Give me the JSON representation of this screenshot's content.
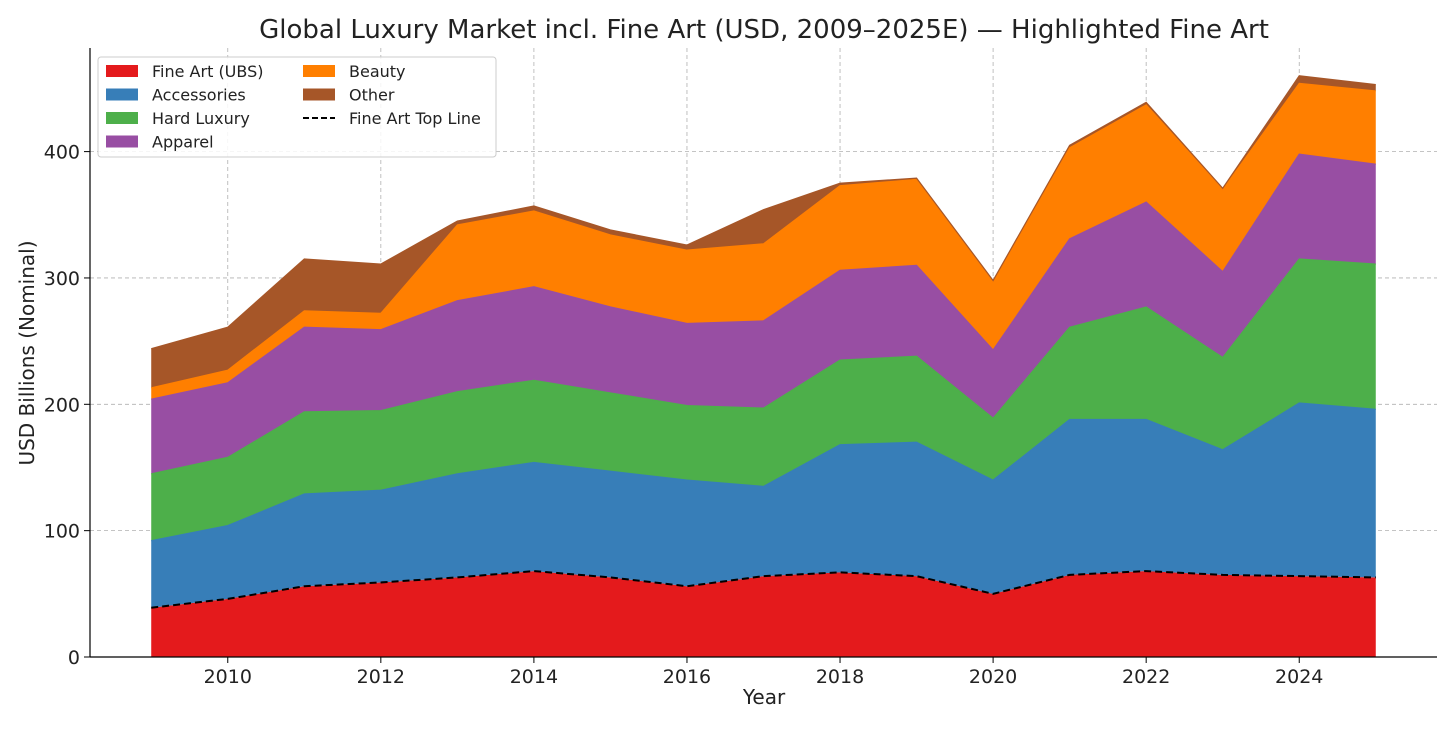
{
  "chart_data": {
    "type": "area",
    "stacked": true,
    "title": "Global Luxury Market incl. Fine Art (USD, 2009–2025E) — Highlighted Fine Art",
    "xlabel": "Year",
    "ylabel": "USD Billions (Nominal)",
    "xlim": [
      2008.2,
      2025.8
    ],
    "ylim": [
      0,
      482
    ],
    "xticks": [
      2010,
      2012,
      2014,
      2016,
      2018,
      2020,
      2022,
      2024
    ],
    "yticks": [
      0,
      100,
      200,
      300,
      400
    ],
    "grid": true,
    "legend_position": "top-left",
    "x": [
      2009,
      2010,
      2011,
      2012,
      2013,
      2014,
      2015,
      2016,
      2017,
      2018,
      2019,
      2020,
      2021,
      2022,
      2023,
      2024,
      2025
    ],
    "series": [
      {
        "name": "Fine Art (UBS)",
        "color": "#e41a1c",
        "values": [
          39,
          46,
          56,
          59,
          63,
          68,
          63,
          56,
          64,
          67,
          64,
          50,
          65,
          68,
          65,
          64,
          63
        ]
      },
      {
        "name": "Accessories",
        "color": "#377eb8",
        "values": [
          53,
          58,
          73,
          73,
          82,
          86,
          84,
          84,
          71,
          101,
          106,
          90,
          123,
          120,
          99,
          137,
          133
        ]
      },
      {
        "name": "Hard Luxury",
        "color": "#4daf4a",
        "values": [
          53,
          54,
          65,
          63,
          65,
          65,
          62,
          59,
          62,
          67,
          68,
          49,
          73,
          89,
          73,
          114,
          115
        ]
      },
      {
        "name": "Apparel",
        "color": "#984ea3",
        "values": [
          59,
          59,
          67,
          64,
          72,
          74,
          68,
          65,
          69,
          71,
          72,
          54,
          70,
          83,
          68,
          83,
          79
        ]
      },
      {
        "name": "Beauty",
        "color": "#ff7f00",
        "values": [
          9,
          10,
          13,
          13,
          60,
          60,
          57,
          58,
          61,
          67,
          68,
          54,
          72,
          77,
          65,
          56,
          58
        ]
      },
      {
        "name": "Other",
        "color": "#a65628",
        "values": [
          31,
          34,
          41,
          39,
          3,
          4,
          4,
          4,
          27,
          2,
          1,
          1,
          2,
          2,
          1,
          6,
          5
        ]
      }
    ],
    "topline": {
      "name": "Fine Art Top Line",
      "color": "#000000",
      "style": "dashed"
    }
  }
}
